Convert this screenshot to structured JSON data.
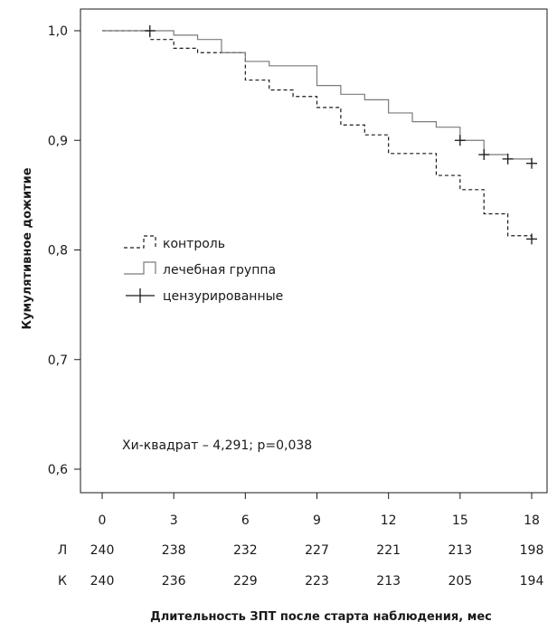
{
  "chart_data": {
    "type": "line",
    "subtype": "kaplan-meier",
    "title": "",
    "xlabel": "Длительность ЗПТ после старта наблюдения, мес",
    "ylabel": "Кумулятивное дожитие",
    "xlim": [
      0,
      18
    ],
    "ylim": [
      0.6,
      1.0
    ],
    "x_ticks": [
      0,
      3,
      6,
      9,
      12,
      15,
      18
    ],
    "y_ticks": [
      1.0,
      0.9,
      0.8,
      0.7,
      0.6
    ],
    "y_tick_labels": [
      "1,0",
      "0,9",
      "0,8",
      "0,7",
      "0,6"
    ],
    "grid": false,
    "legend_position": "middle-left",
    "series": [
      {
        "name": "контроль",
        "style": "dashed",
        "color": "#1a1a1a",
        "steps": [
          {
            "x": 0,
            "y": 1.0
          },
          {
            "x": 2,
            "y": 0.992
          },
          {
            "x": 3,
            "y": 0.984
          },
          {
            "x": 4,
            "y": 0.98
          },
          {
            "x": 6,
            "y": 0.955
          },
          {
            "x": 7,
            "y": 0.946
          },
          {
            "x": 8,
            "y": 0.94
          },
          {
            "x": 9,
            "y": 0.93
          },
          {
            "x": 10,
            "y": 0.914
          },
          {
            "x": 11,
            "y": 0.905
          },
          {
            "x": 12,
            "y": 0.888
          },
          {
            "x": 14,
            "y": 0.868
          },
          {
            "x": 15,
            "y": 0.855
          },
          {
            "x": 16,
            "y": 0.833
          },
          {
            "x": 17,
            "y": 0.813
          },
          {
            "x": 18,
            "y": 0.81
          }
        ],
        "censored": [
          {
            "x": 18,
            "y": 0.81
          }
        ]
      },
      {
        "name": "лечебная группа",
        "style": "solid",
        "color": "#7a7a7a",
        "steps": [
          {
            "x": 0,
            "y": 1.0
          },
          {
            "x": 3,
            "y": 0.996
          },
          {
            "x": 4,
            "y": 0.992
          },
          {
            "x": 5,
            "y": 0.98
          },
          {
            "x": 6,
            "y": 0.972
          },
          {
            "x": 7,
            "y": 0.968
          },
          {
            "x": 9,
            "y": 0.95
          },
          {
            "x": 10,
            "y": 0.942
          },
          {
            "x": 11,
            "y": 0.937
          },
          {
            "x": 12,
            "y": 0.925
          },
          {
            "x": 13,
            "y": 0.917
          },
          {
            "x": 14,
            "y": 0.912
          },
          {
            "x": 15,
            "y": 0.9
          },
          {
            "x": 16,
            "y": 0.887
          },
          {
            "x": 17,
            "y": 0.883
          },
          {
            "x": 18,
            "y": 0.879
          }
        ],
        "censored": [
          {
            "x": 15,
            "y": 0.9
          },
          {
            "x": 16,
            "y": 0.887
          },
          {
            "x": 17,
            "y": 0.883
          },
          {
            "x": 18,
            "y": 0.879
          }
        ]
      }
    ],
    "censor_markers_on_unlabeled_start": [
      {
        "x": 2,
        "y": 1.0
      }
    ],
    "legend": [
      {
        "label": "контроль",
        "style": "dashed-step"
      },
      {
        "label": "лечебная группа",
        "style": "solid-step"
      },
      {
        "label": "цензурированные",
        "style": "censor-mark"
      }
    ],
    "annotation": "Хи-квадрат – 4,291; p=0,038",
    "risk_table": {
      "rows": [
        {
          "label": "Л",
          "values": [
            240,
            238,
            232,
            227,
            221,
            213,
            198
          ]
        },
        {
          "label": "К",
          "values": [
            240,
            236,
            229,
            223,
            213,
            205,
            194
          ]
        }
      ]
    }
  }
}
